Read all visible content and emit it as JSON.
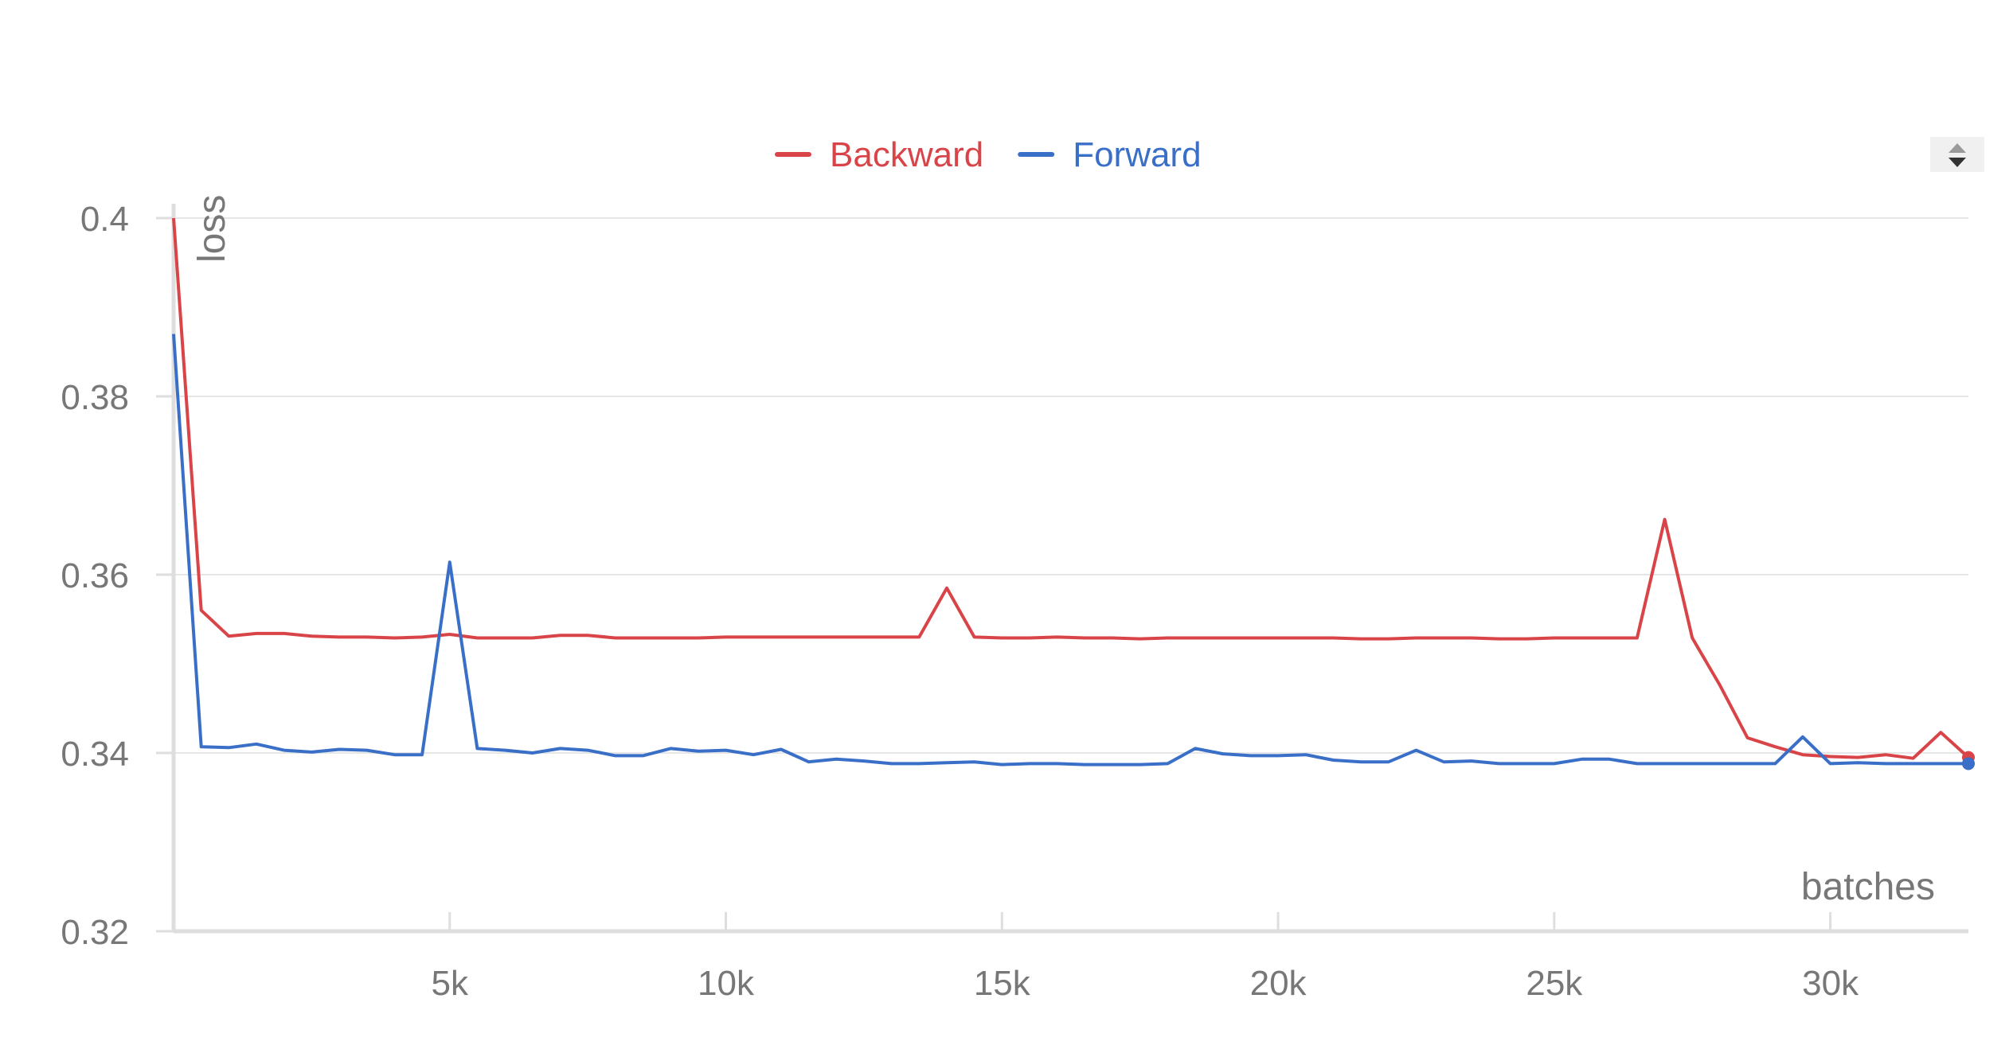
{
  "chart_data": {
    "type": "line",
    "xlabel": "batches",
    "ylabel": "loss",
    "xlim": [
      0,
      32500
    ],
    "ylim": [
      0.32,
      0.4
    ],
    "x_ticks": [
      5000,
      10000,
      15000,
      20000,
      25000,
      30000
    ],
    "x_tick_labels": [
      "5k",
      "10k",
      "15k",
      "20k",
      "25k",
      "30k"
    ],
    "y_ticks": [
      0.32,
      0.34,
      0.36,
      0.38,
      0.4
    ],
    "y_tick_labels": [
      "0.32",
      "0.34",
      "0.36",
      "0.38",
      "0.4"
    ],
    "grid": true,
    "legend_position": "top-center",
    "colors": {
      "Backward": "#d94448",
      "Forward": "#3a6fc8"
    },
    "series": [
      {
        "name": "Backward",
        "x": [
          0,
          500,
          1000,
          1500,
          2000,
          2500,
          3000,
          3500,
          4000,
          4500,
          5000,
          5500,
          6000,
          6500,
          7000,
          7500,
          8000,
          8500,
          9000,
          9500,
          10000,
          10500,
          11000,
          11500,
          12000,
          12500,
          13000,
          13500,
          14000,
          14500,
          15000,
          15500,
          16000,
          16500,
          17000,
          17500,
          18000,
          18500,
          19000,
          19500,
          20000,
          20500,
          21000,
          21500,
          22000,
          22500,
          23000,
          23500,
          24000,
          24500,
          25000,
          25500,
          26000,
          26500,
          27000,
          27500,
          28000,
          28500,
          29000,
          29500,
          30000,
          30500,
          31000,
          31500,
          32000,
          32500
        ],
        "values": [
          0.4,
          0.356,
          0.3531,
          0.3534,
          0.3534,
          0.3531,
          0.353,
          0.353,
          0.3529,
          0.353,
          0.3533,
          0.3529,
          0.3529,
          0.3529,
          0.3532,
          0.3532,
          0.3529,
          0.3529,
          0.3529,
          0.3529,
          0.353,
          0.353,
          0.353,
          0.353,
          0.353,
          0.353,
          0.353,
          0.353,
          0.3585,
          0.353,
          0.3529,
          0.3529,
          0.353,
          0.3529,
          0.3529,
          0.3528,
          0.3529,
          0.3529,
          0.3529,
          0.3529,
          0.3529,
          0.3529,
          0.3529,
          0.3528,
          0.3528,
          0.3529,
          0.3529,
          0.3529,
          0.3528,
          0.3528,
          0.3529,
          0.3529,
          0.3529,
          0.3529,
          0.3662,
          0.3529,
          0.3476,
          0.3417,
          0.3407,
          0.3398,
          0.3396,
          0.3395,
          0.3398,
          0.3394,
          0.3423,
          0.3395
        ]
      },
      {
        "name": "Forward",
        "x": [
          0,
          500,
          1000,
          1500,
          2000,
          2500,
          3000,
          3500,
          4000,
          4500,
          5000,
          5500,
          6000,
          6500,
          7000,
          7500,
          8000,
          8500,
          9000,
          9500,
          10000,
          10500,
          11000,
          11500,
          12000,
          12500,
          13000,
          13500,
          14000,
          14500,
          15000,
          15500,
          16000,
          16500,
          17000,
          17500,
          18000,
          18500,
          19000,
          19500,
          20000,
          20500,
          21000,
          21500,
          22000,
          22500,
          23000,
          23500,
          24000,
          24500,
          25000,
          25500,
          26000,
          26500,
          27000,
          27500,
          28000,
          28500,
          29000,
          29500,
          30000,
          30500,
          31000,
          31500,
          32000,
          32500
        ],
        "values": [
          0.387,
          0.3407,
          0.3406,
          0.341,
          0.3403,
          0.3401,
          0.3404,
          0.3403,
          0.3398,
          0.3398,
          0.3614,
          0.3405,
          0.3403,
          0.34,
          0.3405,
          0.3403,
          0.3397,
          0.3397,
          0.3405,
          0.3402,
          0.3403,
          0.3398,
          0.3404,
          0.339,
          0.3393,
          0.3391,
          0.3388,
          0.3388,
          0.3389,
          0.339,
          0.3387,
          0.3388,
          0.3388,
          0.3387,
          0.3387,
          0.3387,
          0.3388,
          0.3405,
          0.3399,
          0.3397,
          0.3397,
          0.3398,
          0.3392,
          0.339,
          0.339,
          0.3403,
          0.339,
          0.3391,
          0.3388,
          0.3388,
          0.3388,
          0.3393,
          0.3393,
          0.3388,
          0.3388,
          0.3388,
          0.3388,
          0.3388,
          0.3388,
          0.3418,
          0.3388,
          0.3389,
          0.3388,
          0.3388,
          0.3388,
          0.3388
        ]
      }
    ]
  }
}
